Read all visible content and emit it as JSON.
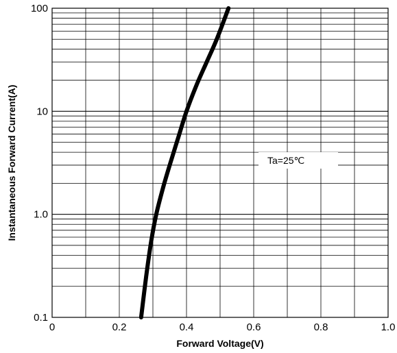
{
  "chart_data": {
    "type": "line",
    "xlabel": "Forward Voltage(V)",
    "ylabel": "Instantaneous Forward Current(A)",
    "xlim": [
      0,
      1.0
    ],
    "ylim": [
      0.1,
      100
    ],
    "y_scale": "log",
    "grid": true,
    "x_ticks": [
      {
        "value": 0,
        "label": "0"
      },
      {
        "value": 0.2,
        "label": "0.2"
      },
      {
        "value": 0.4,
        "label": "0.4"
      },
      {
        "value": 0.6,
        "label": "0.6"
      },
      {
        "value": 0.8,
        "label": "0.8"
      },
      {
        "value": 1.0,
        "label": "1.0"
      }
    ],
    "y_ticks": [
      {
        "value": 0.1,
        "label": "0.1"
      },
      {
        "value": 1,
        "label": "1.0"
      },
      {
        "value": 10,
        "label": "10"
      },
      {
        "value": 100,
        "label": "100"
      }
    ],
    "annotation": "Ta=25℃",
    "series": [
      {
        "x": [
          0.265,
          0.28,
          0.295,
          0.31,
          0.33,
          0.35,
          0.375,
          0.4,
          0.43,
          0.46,
          0.49,
          0.525
        ],
        "y": [
          0.1,
          0.25,
          0.55,
          1.0,
          1.8,
          3.0,
          5.5,
          10,
          18,
          30,
          50,
          100
        ]
      }
    ]
  }
}
